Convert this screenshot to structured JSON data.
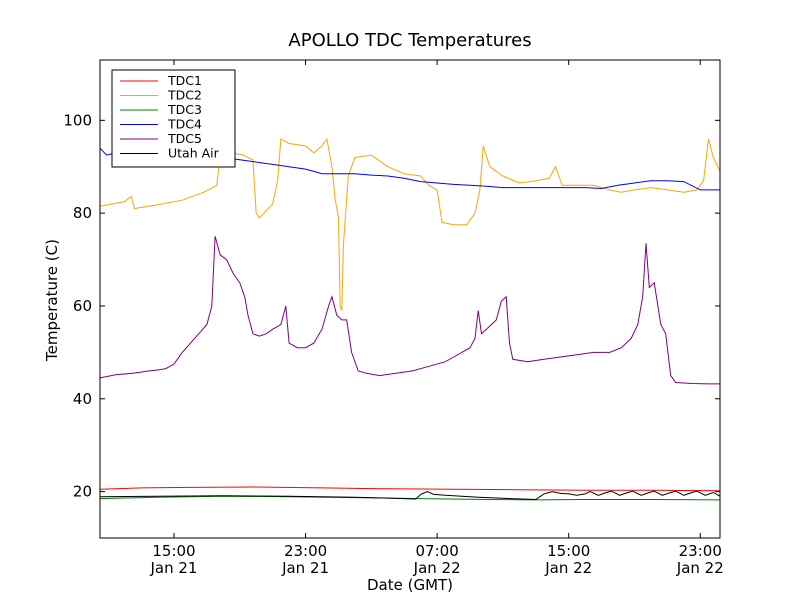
{
  "chart_data": {
    "type": "line",
    "title": "APOLLO TDC Temperatures",
    "xlabel": "Date (GMT)",
    "ylabel": "Temperature (C)",
    "xlim": [
      10.5,
      48.2
    ],
    "ylim": [
      10,
      113
    ],
    "yticks": [
      20,
      40,
      60,
      80,
      100
    ],
    "xticks": [
      {
        "h": 15,
        "time": "15:00",
        "date": "Jan 21"
      },
      {
        "h": 23,
        "time": "23:00",
        "date": "Jan 21"
      },
      {
        "h": 31,
        "time": "07:00",
        "date": "Jan 22"
      },
      {
        "h": 39,
        "time": "15:00",
        "date": "Jan 22"
      },
      {
        "h": 47,
        "time": "23:00",
        "date": "Jan 22"
      }
    ],
    "legend_position": "top-left",
    "series": [
      {
        "name": "TDC1",
        "color": "#ff0000",
        "points": [
          [
            10.5,
            20.5
          ],
          [
            13,
            20.8
          ],
          [
            16,
            20.9
          ],
          [
            20,
            21.0
          ],
          [
            24,
            20.8
          ],
          [
            28,
            20.6
          ],
          [
            32,
            20.5
          ],
          [
            36,
            20.4
          ],
          [
            40,
            20.3
          ],
          [
            44,
            20.3
          ],
          [
            48.2,
            20.2
          ]
        ]
      },
      {
        "name": "TDC2",
        "color": "#ffa500",
        "points": [
          [
            10.5,
            81.5
          ],
          [
            12,
            82.5
          ],
          [
            12.4,
            83.6
          ],
          [
            12.6,
            81
          ],
          [
            14,
            81.8
          ],
          [
            15.5,
            82.8
          ],
          [
            16.8,
            84.5
          ],
          [
            17.6,
            86
          ],
          [
            17.8,
            92.5
          ],
          [
            18.5,
            93
          ],
          [
            19.2,
            92.5
          ],
          [
            19.8,
            91.5
          ],
          [
            20,
            80
          ],
          [
            20.2,
            79
          ],
          [
            20.6,
            80.5
          ],
          [
            21,
            82
          ],
          [
            21.3,
            87
          ],
          [
            21.5,
            96
          ],
          [
            22,
            95
          ],
          [
            23,
            94.5
          ],
          [
            23.5,
            93
          ],
          [
            24,
            94.5
          ],
          [
            24.3,
            96
          ],
          [
            24.6,
            90
          ],
          [
            24.8,
            83
          ],
          [
            25,
            79
          ],
          [
            25.1,
            60
          ],
          [
            25.2,
            59
          ],
          [
            25.3,
            73
          ],
          [
            25.6,
            88
          ],
          [
            26,
            92
          ],
          [
            27,
            92.5
          ],
          [
            28,
            90
          ],
          [
            29,
            88.5
          ],
          [
            30,
            88
          ],
          [
            30.5,
            86
          ],
          [
            31,
            85
          ],
          [
            31.3,
            78
          ],
          [
            32,
            77.5
          ],
          [
            32.8,
            77.5
          ],
          [
            33.3,
            80
          ],
          [
            33.6,
            85
          ],
          [
            33.8,
            94.5
          ],
          [
            34.2,
            90
          ],
          [
            35,
            88
          ],
          [
            36,
            86.5
          ],
          [
            37,
            87
          ],
          [
            37.8,
            87.5
          ],
          [
            38.2,
            90
          ],
          [
            38.6,
            86
          ],
          [
            39.4,
            86
          ],
          [
            40.5,
            86
          ],
          [
            41.5,
            85
          ],
          [
            42.2,
            84.5
          ],
          [
            43,
            85
          ],
          [
            44,
            85.5
          ],
          [
            45,
            85
          ],
          [
            46,
            84.5
          ],
          [
            46.8,
            85
          ],
          [
            47.2,
            87
          ],
          [
            47.5,
            96
          ],
          [
            47.8,
            92
          ],
          [
            48.2,
            89
          ]
        ]
      },
      {
        "name": "TDC3",
        "color": "#008000",
        "points": [
          [
            10.5,
            18.5
          ],
          [
            14,
            18.8
          ],
          [
            18,
            19.0
          ],
          [
            22,
            18.9
          ],
          [
            26,
            18.7
          ],
          [
            30,
            18.5
          ],
          [
            34,
            18.3
          ],
          [
            37,
            18.2
          ],
          [
            40,
            18.3
          ],
          [
            44,
            18.3
          ],
          [
            48.2,
            18.2
          ]
        ]
      },
      {
        "name": "TDC4",
        "color": "#0000ff",
        "points": [
          [
            10.5,
            94
          ],
          [
            10.9,
            92.5
          ],
          [
            11.5,
            93
          ],
          [
            13,
            92.5
          ],
          [
            15,
            92.3
          ],
          [
            17,
            92
          ],
          [
            18,
            92
          ],
          [
            19,
            91.5
          ],
          [
            20,
            91
          ],
          [
            21,
            90.5
          ],
          [
            22,
            90
          ],
          [
            23,
            89.5
          ],
          [
            23.5,
            89
          ],
          [
            24,
            88.5
          ],
          [
            25,
            88.5
          ],
          [
            26,
            88.5
          ],
          [
            27,
            88.2
          ],
          [
            28,
            88
          ],
          [
            29,
            87.5
          ],
          [
            30,
            86.8
          ],
          [
            31,
            86.5
          ],
          [
            32,
            86.2
          ],
          [
            33,
            86
          ],
          [
            34,
            85.8
          ],
          [
            35,
            85.5
          ],
          [
            36,
            85.5
          ],
          [
            38,
            85.5
          ],
          [
            40,
            85.5
          ],
          [
            41,
            85.3
          ],
          [
            42,
            86
          ],
          [
            43,
            86.5
          ],
          [
            44,
            87
          ],
          [
            45,
            87
          ],
          [
            46,
            86.8
          ],
          [
            47,
            85
          ],
          [
            47.5,
            85
          ],
          [
            48.2,
            85
          ]
        ]
      },
      {
        "name": "TDC5",
        "color": "#800080",
        "points": [
          [
            10.5,
            44.5
          ],
          [
            11.5,
            45.2
          ],
          [
            12.5,
            45.5
          ],
          [
            13.5,
            46
          ],
          [
            14,
            46.2
          ],
          [
            14.5,
            46.5
          ],
          [
            15,
            47.5
          ],
          [
            15.5,
            50
          ],
          [
            16,
            52
          ],
          [
            16.5,
            54
          ],
          [
            17,
            56
          ],
          [
            17.3,
            60
          ],
          [
            17.5,
            75
          ],
          [
            17.8,
            71
          ],
          [
            18.2,
            70
          ],
          [
            18.6,
            67
          ],
          [
            19,
            65
          ],
          [
            19.3,
            62
          ],
          [
            19.5,
            58
          ],
          [
            19.8,
            54
          ],
          [
            20.2,
            53.5
          ],
          [
            20.6,
            54
          ],
          [
            21,
            55
          ],
          [
            21.5,
            56
          ],
          [
            21.8,
            60
          ],
          [
            22,
            52
          ],
          [
            22.5,
            51
          ],
          [
            23,
            51
          ],
          [
            23.5,
            52
          ],
          [
            24,
            55
          ],
          [
            24.4,
            60
          ],
          [
            24.6,
            62
          ],
          [
            24.9,
            58
          ],
          [
            25.2,
            57
          ],
          [
            25.5,
            57
          ],
          [
            25.8,
            50
          ],
          [
            26.2,
            46
          ],
          [
            26.7,
            45.5
          ],
          [
            27.5,
            45
          ],
          [
            28.5,
            45.5
          ],
          [
            29.5,
            46
          ],
          [
            30.5,
            47
          ],
          [
            31.5,
            48
          ],
          [
            32,
            49
          ],
          [
            32.5,
            50
          ],
          [
            33,
            51
          ],
          [
            33.3,
            53
          ],
          [
            33.5,
            59
          ],
          [
            33.7,
            54
          ],
          [
            34,
            55
          ],
          [
            34.3,
            56
          ],
          [
            34.6,
            57
          ],
          [
            34.9,
            61
          ],
          [
            35.2,
            62
          ],
          [
            35.4,
            52
          ],
          [
            35.6,
            48.5
          ],
          [
            36.5,
            48
          ],
          [
            37.5,
            48.5
          ],
          [
            38.5,
            49
          ],
          [
            39.5,
            49.5
          ],
          [
            40.5,
            50
          ],
          [
            41.5,
            50
          ],
          [
            42.2,
            51
          ],
          [
            42.8,
            53
          ],
          [
            43.2,
            56
          ],
          [
            43.5,
            62
          ],
          [
            43.7,
            73.5
          ],
          [
            43.9,
            64
          ],
          [
            44.2,
            65
          ],
          [
            44.6,
            56
          ],
          [
            44.9,
            54
          ],
          [
            45.2,
            45
          ],
          [
            45.5,
            43.5
          ],
          [
            46.5,
            43.3
          ],
          [
            47.5,
            43.2
          ],
          [
            48.2,
            43.2
          ]
        ]
      },
      {
        "name": "Utah Air",
        "color": "#000000",
        "points": [
          [
            10.5,
            18.9
          ],
          [
            14,
            19.0
          ],
          [
            18,
            19.1
          ],
          [
            22,
            19.0
          ],
          [
            26,
            18.8
          ],
          [
            28,
            18.6
          ],
          [
            29.7,
            18.4
          ],
          [
            30,
            19.4
          ],
          [
            30.4,
            20.0
          ],
          [
            30.8,
            19.4
          ],
          [
            31.5,
            19.2
          ],
          [
            32.5,
            19.0
          ],
          [
            33.5,
            18.8
          ],
          [
            35.5,
            18.5
          ],
          [
            37,
            18.3
          ],
          [
            37.5,
            19.5
          ],
          [
            38,
            20.0
          ],
          [
            38.5,
            19.6
          ],
          [
            39,
            19.5
          ],
          [
            39.5,
            19.2
          ],
          [
            40,
            19.5
          ],
          [
            40.3,
            20.0
          ],
          [
            40.8,
            19.2
          ],
          [
            41.3,
            19.8
          ],
          [
            41.6,
            20.1
          ],
          [
            42.1,
            19.2
          ],
          [
            42.6,
            19.8
          ],
          [
            42.9,
            20.1
          ],
          [
            43.4,
            19.2
          ],
          [
            43.9,
            19.8
          ],
          [
            44.2,
            20.1
          ],
          [
            44.7,
            19.2
          ],
          [
            45.2,
            19.8
          ],
          [
            45.5,
            20.1
          ],
          [
            46,
            19.2
          ],
          [
            46.5,
            19.8
          ],
          [
            46.8,
            20.1
          ],
          [
            47.3,
            19.2
          ],
          [
            47.8,
            19.8
          ],
          [
            48.2,
            19.0
          ]
        ]
      }
    ]
  }
}
